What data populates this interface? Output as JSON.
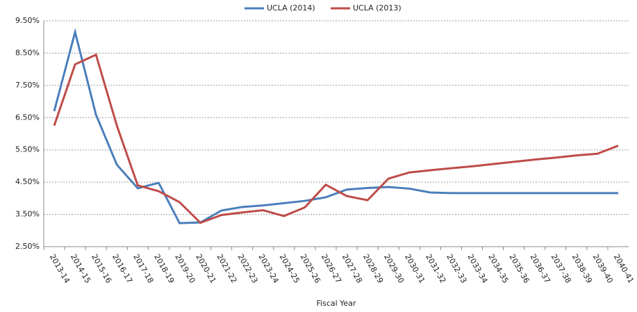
{
  "chart_data": {
    "type": "line",
    "x_label": "Fiscal Year",
    "categories": [
      "2013-14",
      "2014-15",
      "2015-16",
      "2016-17",
      "2017-18",
      "2018-19",
      "2019-20",
      "2020-21",
      "2021-22",
      "2022-23",
      "2023-24",
      "2024-25",
      "2025-26",
      "2026-27",
      "2027-28",
      "2028-29",
      "2029-30",
      "2030-31",
      "2031-32",
      "2032-33",
      "2033-34",
      "2034-35",
      "2035-36",
      "2036-37",
      "2037-38",
      "2038-39",
      "2039-40",
      "2040-41"
    ],
    "series": [
      {
        "name": "UCLA (2014)",
        "color": "#4a7ebb",
        "values": [
          6.7,
          9.15,
          6.59,
          5.04,
          4.31,
          4.48,
          3.23,
          3.25,
          3.62,
          3.73,
          3.78,
          3.85,
          3.92,
          4.03,
          4.27,
          4.32,
          4.35,
          4.3,
          4.18,
          4.16,
          4.16,
          4.16,
          4.16,
          4.16,
          4.16,
          4.16,
          4.16,
          4.16
        ]
      },
      {
        "name": "UCLA (2013)",
        "color": "#be4b48",
        "values": [
          6.25,
          8.15,
          8.45,
          6.25,
          4.4,
          4.22,
          3.88,
          3.24,
          3.48,
          3.56,
          3.63,
          3.45,
          3.72,
          4.42,
          4.07,
          3.94,
          4.61,
          4.8,
          4.87,
          4.93,
          4.99,
          5.06,
          5.13,
          5.2,
          5.26,
          5.33,
          5.38,
          5.63
        ]
      }
    ],
    "ylim": [
      2.5,
      9.5
    ],
    "yticks": [
      {
        "value": 2.5,
        "label": "2.50%"
      },
      {
        "value": 3.5,
        "label": "3.50%"
      },
      {
        "value": 4.5,
        "label": "4.50%"
      },
      {
        "value": 5.5,
        "label": "5.50%"
      },
      {
        "value": 6.5,
        "label": "6.50%"
      },
      {
        "value": 7.5,
        "label": "7.50%"
      },
      {
        "value": 8.5,
        "label": "8.50%"
      },
      {
        "value": 9.5,
        "label": "9.50%"
      }
    ],
    "grid": true,
    "legend": "top"
  }
}
